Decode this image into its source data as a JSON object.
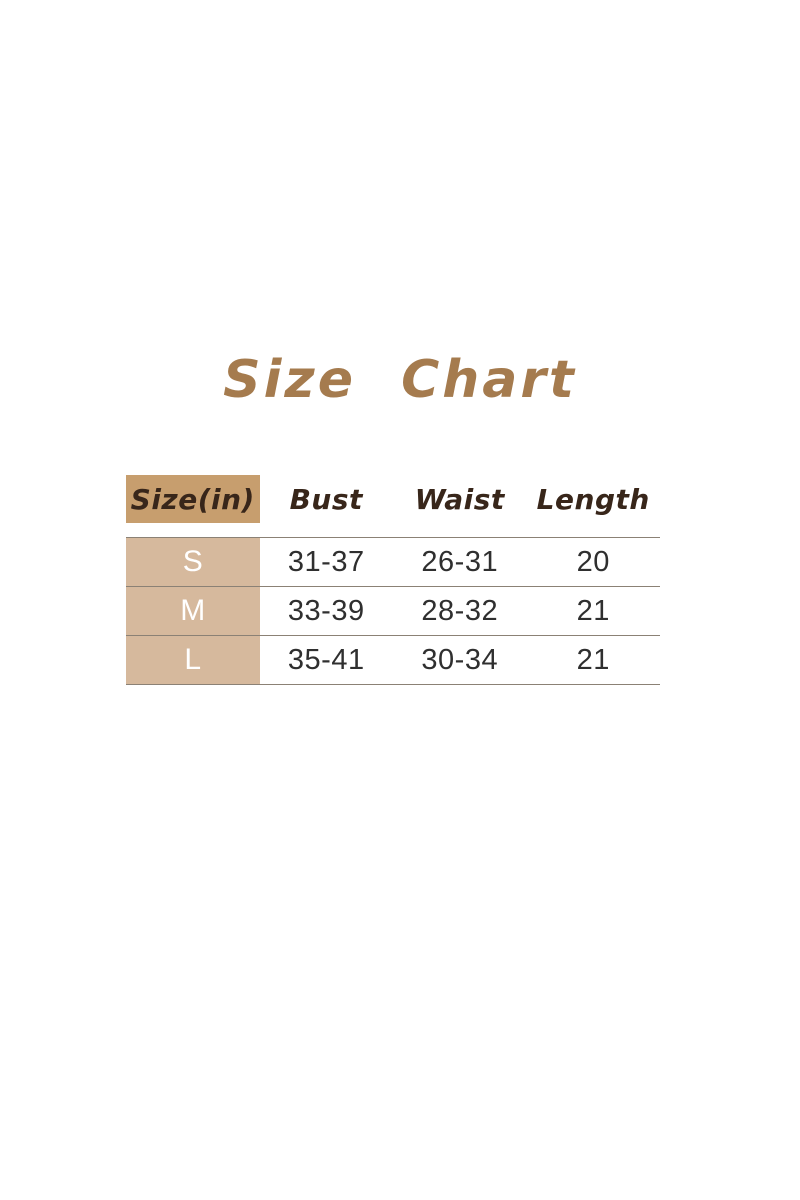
{
  "title": {
    "text": "Size Chart"
  },
  "chart_data": {
    "type": "table",
    "title": "Size Chart",
    "unit": "inches",
    "columns": [
      "Size(in)",
      "Bust",
      "Waist",
      "Length"
    ],
    "rows": [
      [
        "S",
        "31-37",
        "26-31",
        "20"
      ],
      [
        "M",
        "33-39",
        "28-32",
        "21"
      ],
      [
        "L",
        "35-41",
        "30-34",
        "21"
      ]
    ]
  },
  "theme": {
    "title-color": "#A57B4E",
    "header-cell-bg": "#C79E6E",
    "header-text-color": "#38261A",
    "row-label-bg": "#D6B99D",
    "row-label-text": "#FFFFFF",
    "value-text-color": "#2F2F2F",
    "divider-color": "#8B8175",
    "page-bg": "#FFFFFF"
  }
}
